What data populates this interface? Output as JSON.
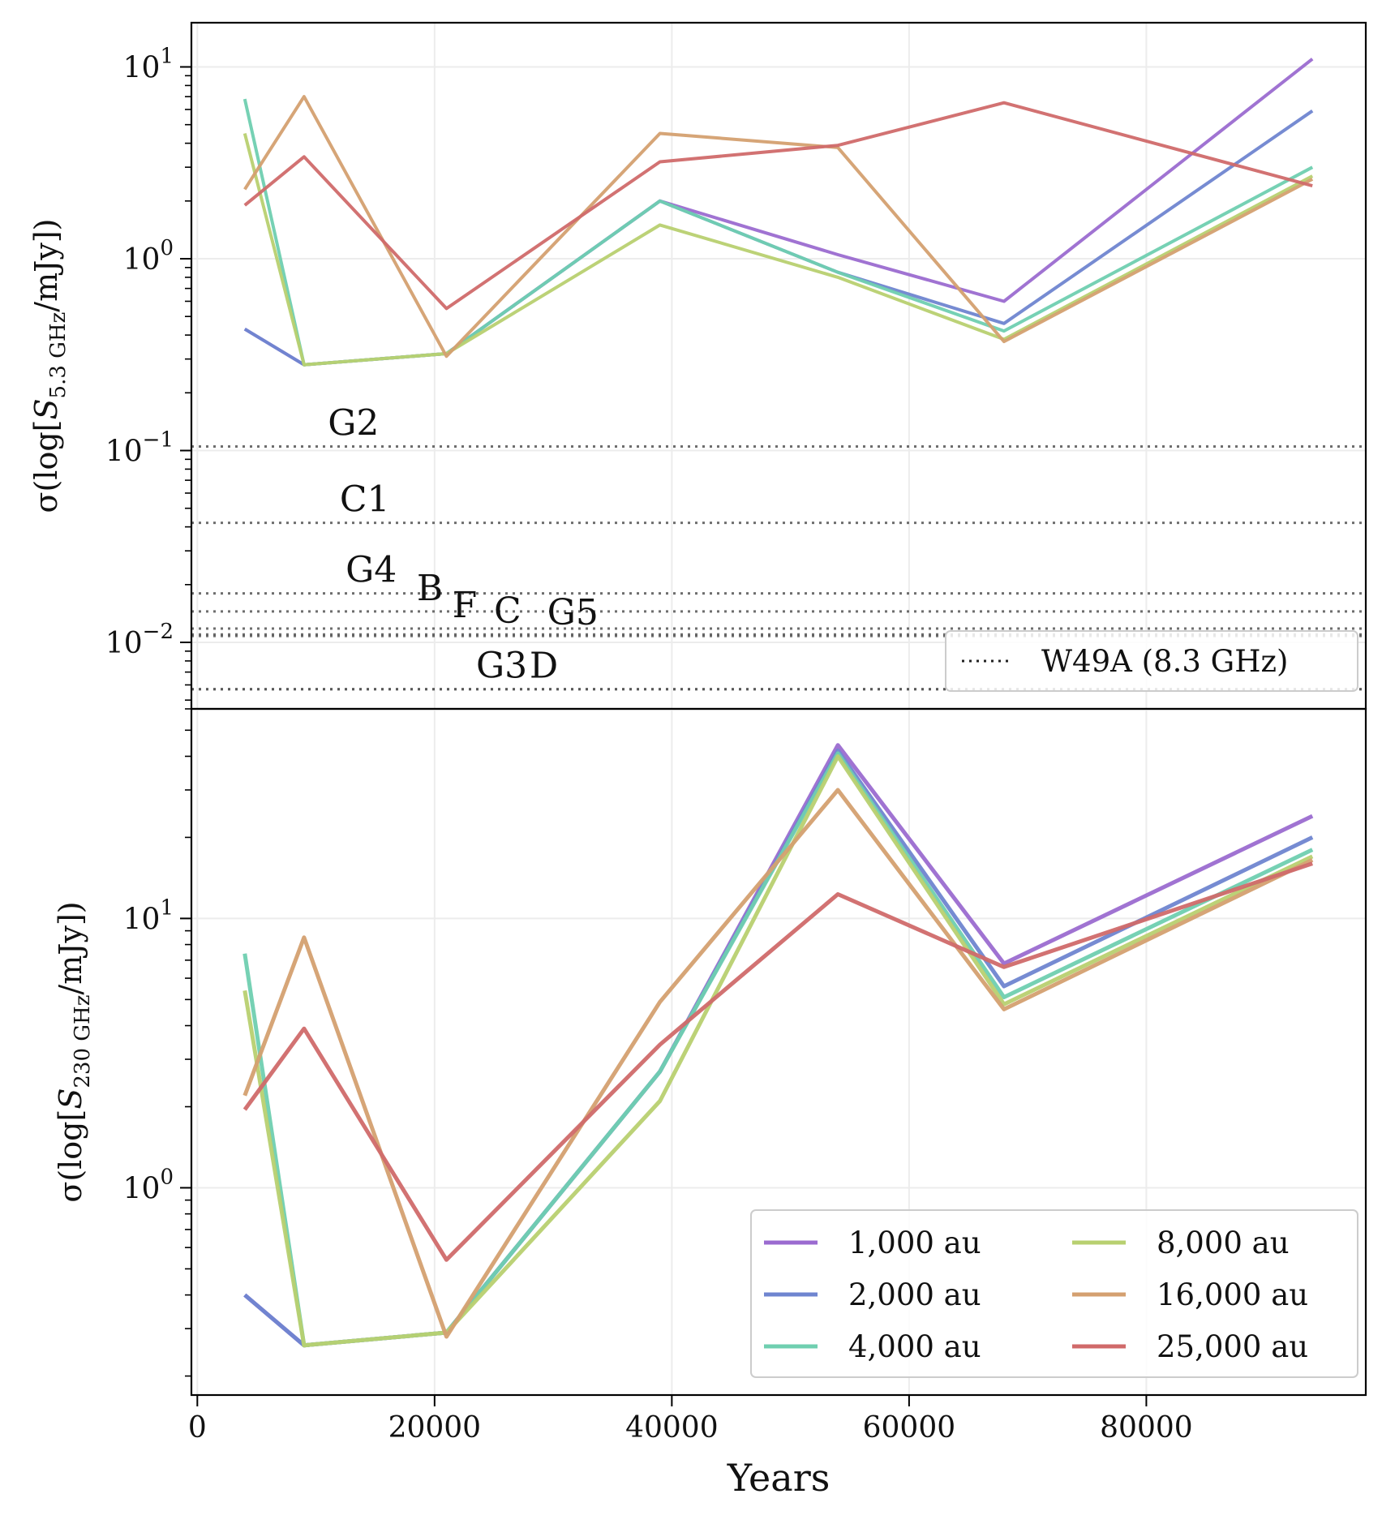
{
  "chart_data": [
    {
      "type": "line",
      "panel": "top",
      "ylabel": "σ(log[S_5.3 GHz/mJy])",
      "yscale": "log",
      "ylim": [
        0.0045,
        17
      ],
      "xlim": [
        -500,
        98500
      ],
      "yticks": [
        {
          "value": 0.01,
          "mantissa": "10",
          "exp": "−2"
        },
        {
          "value": 0.1,
          "mantissa": "10",
          "exp": "−1"
        },
        {
          "value": 1,
          "mantissa": "10",
          "exp": "0"
        },
        {
          "value": 10,
          "mantissa": "10",
          "exp": "1"
        }
      ],
      "grid": true,
      "x": [
        4000,
        9000,
        21000,
        39000,
        54000,
        68000,
        94000
      ],
      "series": [
        {
          "name": "1,000 au",
          "color": "#9b6bd0",
          "values": [
            0.43,
            0.28,
            0.32,
            2.0,
            1.05,
            0.6,
            11.0
          ]
        },
        {
          "name": "2,000 au",
          "color": "#6f85d0",
          "values": [
            0.43,
            0.28,
            0.32,
            2.0,
            0.85,
            0.46,
            5.9
          ]
        },
        {
          "name": "4,000 au",
          "color": "#6fcfb0",
          "values": [
            6.8,
            0.28,
            0.32,
            2.0,
            0.85,
            0.42,
            3.0
          ]
        },
        {
          "name": "8,000 au",
          "color": "#b8d070",
          "values": [
            4.5,
            0.28,
            0.32,
            1.5,
            0.8,
            0.38,
            2.7
          ]
        },
        {
          "name": "16,000 au",
          "color": "#d4a070",
          "values": [
            2.3,
            7.0,
            0.31,
            4.5,
            3.8,
            0.37,
            2.6
          ]
        },
        {
          "name": "25,000 au",
          "color": "#d06a6a",
          "values": [
            1.9,
            3.4,
            0.55,
            3.2,
            3.9,
            6.5,
            2.4
          ]
        }
      ],
      "reference_lines": {
        "legend_label": "W49A (8.3 GHz)",
        "values": [
          {
            "label": "G2",
            "value": 0.105,
            "label_x": 11000
          },
          {
            "label": "C1",
            "value": 0.042,
            "label_x": 12000
          },
          {
            "label": "G4",
            "value": 0.018,
            "label_x": 12500
          },
          {
            "label": "B",
            "value": 0.0145,
            "label_x": 18500
          },
          {
            "label": "F",
            "value": 0.0118,
            "label_x": 21500
          },
          {
            "label": "C",
            "value": 0.011,
            "label_x": 25000
          },
          {
            "label": "G5",
            "value": 0.0108,
            "label_x": 29500
          },
          {
            "label": "G3",
            "value": 0.0057,
            "label_x": 23500
          },
          {
            "label": "D",
            "value": 0.0057,
            "label_x": 28000
          }
        ]
      },
      "legend_placement": "lower-right"
    },
    {
      "type": "line",
      "panel": "bottom",
      "ylabel": "σ(log[S_230 GHz/mJy])",
      "xlabel": "Years",
      "yscale": "log",
      "ylim": [
        0.17,
        60
      ],
      "xlim": [
        -500,
        98500
      ],
      "xticks": [
        0,
        20000,
        40000,
        60000,
        80000
      ],
      "yticks": [
        {
          "value": 1,
          "mantissa": "10",
          "exp": "0"
        },
        {
          "value": 10,
          "mantissa": "10",
          "exp": "1"
        }
      ],
      "grid": true,
      "x": [
        4000,
        9000,
        21000,
        39000,
        54000,
        68000,
        94000
      ],
      "series": [
        {
          "name": "1,000 au",
          "color": "#9b6bd0",
          "values": [
            0.4,
            0.26,
            0.29,
            2.7,
            44,
            6.8,
            24.0
          ]
        },
        {
          "name": "2,000 au",
          "color": "#6f85d0",
          "values": [
            0.4,
            0.26,
            0.29,
            2.7,
            42,
            5.6,
            20.0
          ]
        },
        {
          "name": "4,000 au",
          "color": "#6fcfb0",
          "values": [
            7.4,
            0.26,
            0.29,
            2.7,
            41,
            5.1,
            18.0
          ]
        },
        {
          "name": "8,000 au",
          "color": "#b8d070",
          "values": [
            5.4,
            0.26,
            0.29,
            2.1,
            40,
            4.8,
            17.0
          ]
        },
        {
          "name": "16,000 au",
          "color": "#d4a070",
          "values": [
            2.2,
            8.5,
            0.28,
            4.9,
            30,
            4.6,
            16.5
          ]
        },
        {
          "name": "25,000 au",
          "color": "#d06a6a",
          "values": [
            1.95,
            3.9,
            0.54,
            3.4,
            12.3,
            6.6,
            16.0
          ]
        }
      ],
      "legend_placement": "lower-right",
      "legend_columns": 2
    }
  ]
}
